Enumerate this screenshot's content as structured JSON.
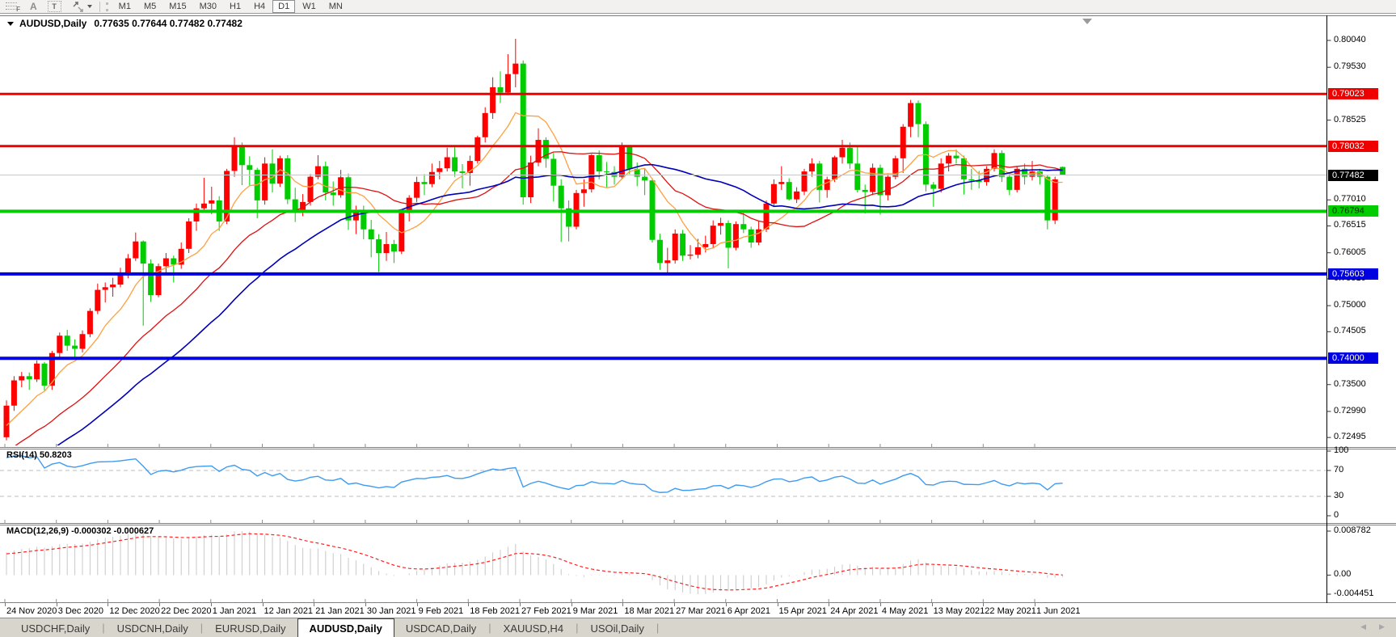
{
  "toolbar": {
    "icons": [
      {
        "name": "fibonacci-tool-icon",
        "glyph": "F"
      },
      {
        "name": "text-tool-icon",
        "glyph": "A"
      },
      {
        "name": "text-label-tool-icon",
        "glyph": "T"
      },
      {
        "name": "arrows-tool-icon",
        "glyph": ""
      }
    ],
    "timeframes": [
      {
        "label": "M1",
        "active": false
      },
      {
        "label": "M5",
        "active": false
      },
      {
        "label": "M15",
        "active": false
      },
      {
        "label": "M30",
        "active": false
      },
      {
        "label": "H1",
        "active": false
      },
      {
        "label": "H4",
        "active": false
      },
      {
        "label": "D1",
        "active": true
      },
      {
        "label": "W1",
        "active": false
      },
      {
        "label": "MN",
        "active": false
      }
    ]
  },
  "chart": {
    "title_symbol": "AUDUSD,Daily",
    "title_ohlc": "0.77635 0.77644 0.77482 0.77482"
  },
  "chart_data": {
    "type": "candlestick",
    "symbol": "AUDUSD",
    "timeframe": "Daily",
    "colors": {
      "bull": "#FF0000",
      "bear": "#00CC00",
      "ma_fast": "#FFA040",
      "ma_mid": "#E01010",
      "ma_slow": "#0000B8",
      "rsi": "#3E9BF0",
      "macd_bar": "#C8C8C8",
      "macd_signal": "#FF2020",
      "hline_red": "#EE0000",
      "hline_green": "#00CC00",
      "hline_blue": "#0000E0",
      "current_line": "#C8C8C8"
    },
    "price_axis_ticks": [
      "0.80040",
      "0.79530",
      "0.78525",
      "0.77010",
      "0.76515",
      "0.76005",
      "0.75510",
      "0.75000",
      "0.74505",
      "0.73500",
      "0.72990",
      "0.72495"
    ],
    "hlines": [
      {
        "price": 0.79023,
        "label": "0.79023",
        "type": "resistance",
        "color_key": "hline_red",
        "text": "#FFFFFF",
        "width": 3
      },
      {
        "price": 0.78032,
        "label": "0.78032",
        "type": "resistance",
        "color_key": "hline_red",
        "text": "#FFFFFF",
        "width": 3
      },
      {
        "price": 0.76794,
        "label": "0.76794",
        "type": "support",
        "color_key": "hline_green",
        "text": "#003300",
        "width": 4
      },
      {
        "price": 0.75603,
        "label": "0.75603",
        "type": "support",
        "color_key": "hline_blue",
        "text": "#FFFFFF",
        "width": 4
      },
      {
        "price": 0.74,
        "label": "0.74000",
        "type": "support",
        "color_key": "hline_blue",
        "text": "#FFFFFF",
        "width": 4
      }
    ],
    "current_price": {
      "value": 0.77482,
      "label": "0.77482",
      "label_bg": "#000000",
      "label_text": "#FFFFFF"
    },
    "date_labels": [
      "24 Nov 2020",
      "3 Dec 2020",
      "12 Dec 2020",
      "22 Dec 2020",
      "1 Jan 2021",
      "12 Jan 2021",
      "21 Jan 2021",
      "30 Jan 2021",
      "9 Feb 2021",
      "18 Feb 2021",
      "27 Feb 2021",
      "9 Mar 2021",
      "18 Mar 2021",
      "27 Mar 2021",
      "6 Apr 2021",
      "15 Apr 2021",
      "24 Apr 2021",
      "4 May 2021",
      "13 May 2021",
      "22 May 2021",
      "1 Jun 2021"
    ],
    "moving_averages": [
      {
        "name": "MA-fast-orange",
        "period": 8,
        "color_key": "ma_fast"
      },
      {
        "name": "MA-mid-red",
        "period": 21,
        "color_key": "ma_mid"
      },
      {
        "name": "MA-slow-blue",
        "period": 34,
        "color_key": "ma_slow"
      }
    ],
    "indicators": {
      "rsi": {
        "display": "RSI(14) 50.8203",
        "period": 14,
        "value": 50.8203,
        "axis": [
          "100",
          "70",
          "30",
          "0"
        ],
        "levels": [
          70,
          30
        ],
        "range": [
          0,
          100
        ]
      },
      "macd": {
        "display": "MACD(12,26,9) -0.000302 -0.000627",
        "fast": 12,
        "slow": 26,
        "signal": 9,
        "macd_value": -0.000302,
        "signal_value": -0.000627,
        "axis_max": "0.008782",
        "axis_zero": "0.00",
        "axis_min": "-0.004451"
      }
    },
    "ohlc": [
      [
        0.725,
        0.732,
        0.7244,
        0.731
      ],
      [
        0.731,
        0.7366,
        0.73,
        0.7358
      ],
      [
        0.7358,
        0.7374,
        0.7345,
        0.7366
      ],
      [
        0.7366,
        0.7373,
        0.734,
        0.736
      ],
      [
        0.736,
        0.7396,
        0.7355,
        0.739
      ],
      [
        0.739,
        0.7393,
        0.7339,
        0.7348
      ],
      [
        0.7348,
        0.7414,
        0.734,
        0.741
      ],
      [
        0.741,
        0.7449,
        0.74,
        0.7443
      ],
      [
        0.7443,
        0.7454,
        0.7414,
        0.7424
      ],
      [
        0.7424,
        0.7436,
        0.74,
        0.7418
      ],
      [
        0.7418,
        0.7453,
        0.7411,
        0.7446
      ],
      [
        0.7446,
        0.7495,
        0.744,
        0.749
      ],
      [
        0.749,
        0.7542,
        0.7484,
        0.753
      ],
      [
        0.753,
        0.7544,
        0.7506,
        0.7535
      ],
      [
        0.7535,
        0.7553,
        0.7517,
        0.754
      ],
      [
        0.754,
        0.7572,
        0.7535,
        0.756
      ],
      [
        0.756,
        0.7598,
        0.7552,
        0.759
      ],
      [
        0.759,
        0.7639,
        0.7585,
        0.7622
      ],
      [
        0.7622,
        0.7624,
        0.7462,
        0.758
      ],
      [
        0.758,
        0.7588,
        0.7507,
        0.752
      ],
      [
        0.752,
        0.758,
        0.7516,
        0.7575
      ],
      [
        0.7575,
        0.76,
        0.7558,
        0.759
      ],
      [
        0.759,
        0.7595,
        0.7544,
        0.7578
      ],
      [
        0.7578,
        0.762,
        0.757,
        0.7608
      ],
      [
        0.7608,
        0.7666,
        0.76,
        0.766
      ],
      [
        0.766,
        0.7694,
        0.7642,
        0.7685
      ],
      [
        0.7685,
        0.7743,
        0.7681,
        0.7694
      ],
      [
        0.7694,
        0.7726,
        0.7674,
        0.77
      ],
      [
        0.77,
        0.7708,
        0.7642,
        0.766
      ],
      [
        0.766,
        0.776,
        0.7655,
        0.7756
      ],
      [
        0.7756,
        0.782,
        0.7745,
        0.7804
      ],
      [
        0.7804,
        0.781,
        0.7729,
        0.7767
      ],
      [
        0.7767,
        0.7784,
        0.7727,
        0.7758
      ],
      [
        0.7758,
        0.7762,
        0.7666,
        0.77
      ],
      [
        0.77,
        0.7782,
        0.7692,
        0.777
      ],
      [
        0.777,
        0.7797,
        0.7715,
        0.7732
      ],
      [
        0.7732,
        0.7785,
        0.7726,
        0.778
      ],
      [
        0.778,
        0.7786,
        0.7693,
        0.7702
      ],
      [
        0.7702,
        0.7724,
        0.7659,
        0.7678
      ],
      [
        0.7678,
        0.7712,
        0.767,
        0.7697
      ],
      [
        0.7697,
        0.775,
        0.769,
        0.7745
      ],
      [
        0.7745,
        0.7786,
        0.774,
        0.7765
      ],
      [
        0.7765,
        0.7774,
        0.77,
        0.7715
      ],
      [
        0.7715,
        0.7736,
        0.769,
        0.771
      ],
      [
        0.771,
        0.7758,
        0.7705,
        0.7744
      ],
      [
        0.7744,
        0.7751,
        0.7644,
        0.7662
      ],
      [
        0.7662,
        0.769,
        0.7636,
        0.7679
      ],
      [
        0.7679,
        0.769,
        0.7626,
        0.7645
      ],
      [
        0.7645,
        0.7663,
        0.7592,
        0.7626
      ],
      [
        0.7626,
        0.7636,
        0.7564,
        0.76
      ],
      [
        0.76,
        0.764,
        0.7585,
        0.7617
      ],
      [
        0.7617,
        0.7625,
        0.7581,
        0.7603
      ],
      [
        0.7603,
        0.7682,
        0.7598,
        0.7676
      ],
      [
        0.7676,
        0.771,
        0.766,
        0.7705
      ],
      [
        0.7705,
        0.7745,
        0.7697,
        0.7735
      ],
      [
        0.7735,
        0.775,
        0.771,
        0.7731
      ],
      [
        0.7731,
        0.777,
        0.7725,
        0.7754
      ],
      [
        0.7754,
        0.7775,
        0.774,
        0.7761
      ],
      [
        0.7761,
        0.78,
        0.7755,
        0.7782
      ],
      [
        0.7782,
        0.7805,
        0.7745,
        0.7755
      ],
      [
        0.7755,
        0.7769,
        0.7723,
        0.7752
      ],
      [
        0.7752,
        0.7785,
        0.7728,
        0.7775
      ],
      [
        0.7775,
        0.7823,
        0.777,
        0.782
      ],
      [
        0.782,
        0.7877,
        0.781,
        0.7866
      ],
      [
        0.7866,
        0.7934,
        0.7855,
        0.7915
      ],
      [
        0.7915,
        0.7945,
        0.7885,
        0.7905
      ],
      [
        0.7905,
        0.7978,
        0.79,
        0.794
      ],
      [
        0.794,
        0.8007,
        0.7915,
        0.796
      ],
      [
        0.796,
        0.7966,
        0.7692,
        0.7706
      ],
      [
        0.7706,
        0.7785,
        0.7695,
        0.7772
      ],
      [
        0.7772,
        0.7837,
        0.7765,
        0.7815
      ],
      [
        0.7815,
        0.782,
        0.7762,
        0.7779
      ],
      [
        0.7779,
        0.779,
        0.7698,
        0.7728
      ],
      [
        0.7728,
        0.774,
        0.7621,
        0.7685
      ],
      [
        0.7685,
        0.77,
        0.7622,
        0.765
      ],
      [
        0.765,
        0.772,
        0.7645,
        0.7714
      ],
      [
        0.7714,
        0.774,
        0.7688,
        0.7721
      ],
      [
        0.7721,
        0.7788,
        0.7715,
        0.7786
      ],
      [
        0.7786,
        0.7795,
        0.774,
        0.7755
      ],
      [
        0.7755,
        0.7773,
        0.7724,
        0.7754
      ],
      [
        0.7754,
        0.7765,
        0.773,
        0.7745
      ],
      [
        0.7745,
        0.781,
        0.774,
        0.7803
      ],
      [
        0.7803,
        0.7805,
        0.775,
        0.776
      ],
      [
        0.776,
        0.7772,
        0.7727,
        0.7745
      ],
      [
        0.7745,
        0.776,
        0.771,
        0.7738
      ],
      [
        0.7738,
        0.7742,
        0.762,
        0.7625
      ],
      [
        0.7625,
        0.7637,
        0.7568,
        0.7581
      ],
      [
        0.7581,
        0.761,
        0.7562,
        0.7586
      ],
      [
        0.7586,
        0.7645,
        0.758,
        0.7637
      ],
      [
        0.7637,
        0.7644,
        0.7585,
        0.7595
      ],
      [
        0.7595,
        0.7615,
        0.7588,
        0.7597
      ],
      [
        0.7597,
        0.7627,
        0.759,
        0.7611
      ],
      [
        0.7611,
        0.7633,
        0.7601,
        0.7617
      ],
      [
        0.7617,
        0.7662,
        0.761,
        0.7652
      ],
      [
        0.7652,
        0.7667,
        0.7635,
        0.7657
      ],
      [
        0.7657,
        0.7662,
        0.7571,
        0.761
      ],
      [
        0.761,
        0.766,
        0.7605,
        0.7655
      ],
      [
        0.7655,
        0.7678,
        0.7638,
        0.7645
      ],
      [
        0.7645,
        0.765,
        0.761,
        0.762
      ],
      [
        0.762,
        0.766,
        0.7615,
        0.7645
      ],
      [
        0.7645,
        0.77,
        0.764,
        0.7694
      ],
      [
        0.7694,
        0.774,
        0.7688,
        0.7731
      ],
      [
        0.7731,
        0.7765,
        0.772,
        0.7735
      ],
      [
        0.7735,
        0.7742,
        0.77,
        0.7702
      ],
      [
        0.7702,
        0.7725,
        0.7695,
        0.7717
      ],
      [
        0.7717,
        0.776,
        0.771,
        0.7755
      ],
      [
        0.7755,
        0.778,
        0.7745,
        0.777
      ],
      [
        0.777,
        0.7775,
        0.7696,
        0.772
      ],
      [
        0.772,
        0.7745,
        0.7705,
        0.774
      ],
      [
        0.774,
        0.7785,
        0.7735,
        0.7782
      ],
      [
        0.7782,
        0.7815,
        0.777,
        0.78
      ],
      [
        0.78,
        0.781,
        0.776,
        0.777
      ],
      [
        0.777,
        0.7805,
        0.7715,
        0.772
      ],
      [
        0.772,
        0.773,
        0.7675,
        0.7716
      ],
      [
        0.7716,
        0.777,
        0.771,
        0.7762
      ],
      [
        0.7762,
        0.7768,
        0.7673,
        0.771
      ],
      [
        0.771,
        0.775,
        0.77,
        0.7745
      ],
      [
        0.7745,
        0.7785,
        0.774,
        0.778
      ],
      [
        0.778,
        0.7845,
        0.7752,
        0.784
      ],
      [
        0.784,
        0.7891,
        0.782,
        0.7885
      ],
      [
        0.7885,
        0.789,
        0.782,
        0.7845
      ],
      [
        0.7845,
        0.785,
        0.7717,
        0.773
      ],
      [
        0.773,
        0.7735,
        0.7688,
        0.7722
      ],
      [
        0.7722,
        0.778,
        0.7715,
        0.777
      ],
      [
        0.777,
        0.779,
        0.7755,
        0.7785
      ],
      [
        0.7785,
        0.7797,
        0.777,
        0.778
      ],
      [
        0.778,
        0.7785,
        0.7711,
        0.774
      ],
      [
        0.774,
        0.776,
        0.772,
        0.7738
      ],
      [
        0.7738,
        0.7756,
        0.7723,
        0.7735
      ],
      [
        0.7735,
        0.7765,
        0.7728,
        0.776
      ],
      [
        0.776,
        0.7797,
        0.7755,
        0.779
      ],
      [
        0.779,
        0.7795,
        0.7735,
        0.7745
      ],
      [
        0.7745,
        0.775,
        0.771,
        0.772
      ],
      [
        0.772,
        0.7765,
        0.7715,
        0.776
      ],
      [
        0.776,
        0.777,
        0.773,
        0.7745
      ],
      [
        0.7745,
        0.7775,
        0.7738,
        0.7755
      ],
      [
        0.7755,
        0.776,
        0.773,
        0.7745
      ],
      [
        0.7745,
        0.7748,
        0.7645,
        0.7662
      ],
      [
        0.7662,
        0.7745,
        0.7655,
        0.774
      ],
      [
        0.77635,
        0.77644,
        0.77482,
        0.77482
      ]
    ]
  },
  "tabs": {
    "separator": "|",
    "items": [
      {
        "label": "USDCHF,Daily",
        "active": false
      },
      {
        "label": "USDCNH,Daily",
        "active": false
      },
      {
        "label": "EURUSD,Daily",
        "active": false
      },
      {
        "label": "AUDUSD,Daily",
        "active": true
      },
      {
        "label": "USDCAD,Daily",
        "active": false
      },
      {
        "label": "XAUUSD,H4",
        "active": false
      },
      {
        "label": "USOil,Daily",
        "active": false
      }
    ]
  },
  "scroll": {
    "left": "◀",
    "right": "▶"
  }
}
